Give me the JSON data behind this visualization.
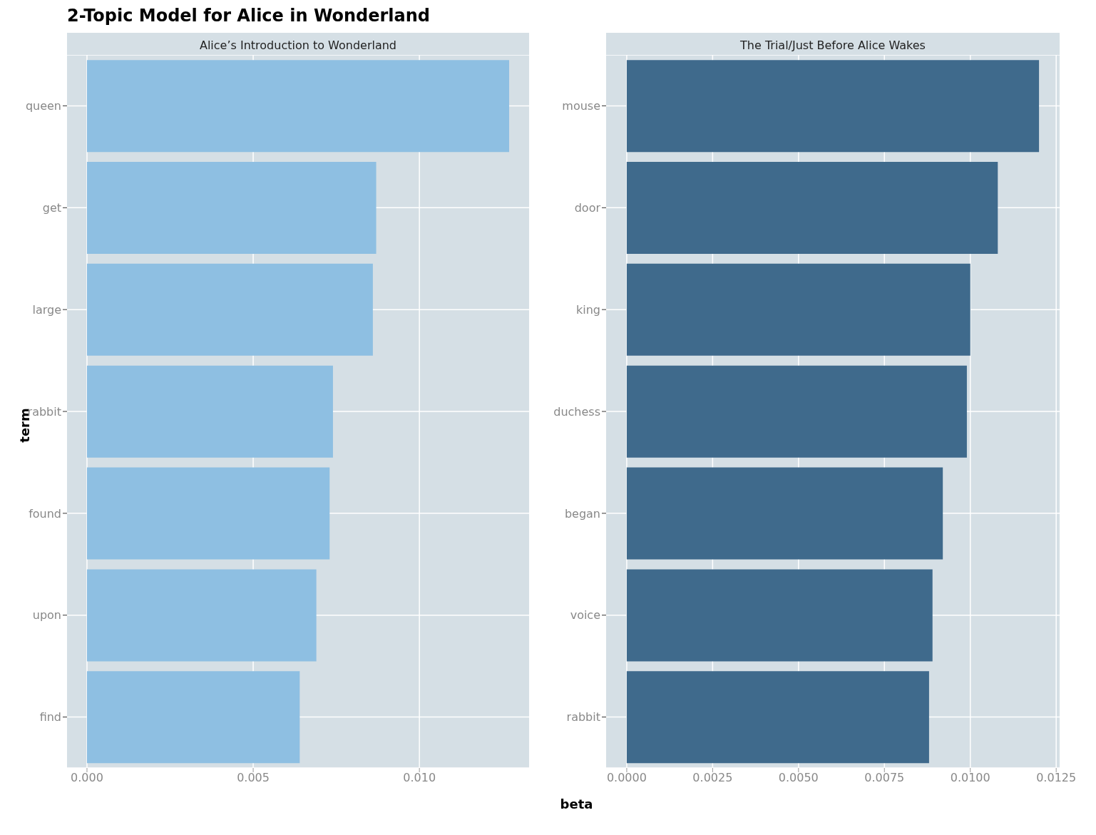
{
  "chart_data": [
    {
      "type": "bar",
      "orientation": "horizontal",
      "title": "2-Topic Model for Alice in Wonderland",
      "subtitle": "Alice’s Introduction to Wonderland",
      "xlabel": "beta",
      "ylabel": "term",
      "categories": [
        "queen",
        "get",
        "large",
        "rabbit",
        "found",
        "upon",
        "find"
      ],
      "values": [
        0.0127,
        0.0087,
        0.0086,
        0.0074,
        0.0073,
        0.0069,
        0.0064
      ],
      "color": "#8ebfe2",
      "xlim": [
        -0.0006,
        0.0133
      ],
      "xticks": [
        {
          "value": 0,
          "label": "0.000"
        },
        0.005,
        {
          "value": 0.01,
          "label": "0.010"
        }
      ],
      "grid": true
    },
    {
      "type": "bar",
      "orientation": "horizontal",
      "subtitle": "The Trial/Just Before Alice Wakes",
      "categories": [
        "mouse",
        "door",
        "king",
        "duchess",
        "began",
        "voice",
        "rabbit"
      ],
      "values": [
        0.012,
        0.0108,
        0.01,
        0.0099,
        0.0092,
        0.0089,
        0.0088
      ],
      "color": "#3f6a8c",
      "xlim": [
        -0.0006,
        0.0126
      ],
      "xticks": [
        {
          "value": 0,
          "label": "0.0000"
        },
        0.0025,
        {
          "value": 0.005,
          "label": "0.0050"
        },
        {
          "value": 0.0075,
          "label": "0.0075"
        },
        {
          "value": 0.01,
          "label": "0.0100"
        },
        {
          "value": 0.0125,
          "label": "0.0125"
        }
      ],
      "grid": true
    }
  ]
}
